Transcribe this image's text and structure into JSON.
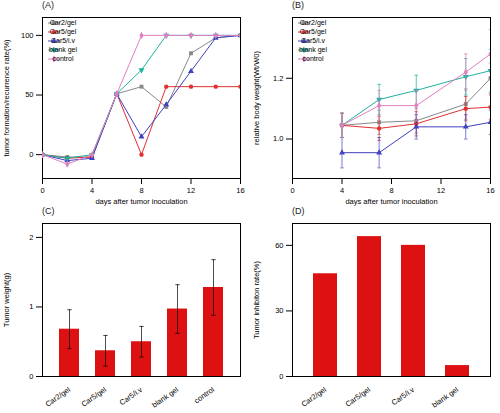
{
  "chart_data": [
    {
      "type": "line",
      "title": "(A)",
      "xlabel": "days after tumor inoculation",
      "ylabel": "tumor formation/recurrence rate(%)",
      "xlim": [
        0,
        16
      ],
      "ylim": [
        -20,
        115
      ],
      "xticks": [
        0,
        4,
        8,
        12,
        16
      ],
      "yticks": [
        0,
        50,
        100
      ],
      "grid": false,
      "legend": "upper left",
      "series": [
        {
          "name": "Car2/gel",
          "color": "#888888",
          "marker": "square",
          "x": [
            0,
            2,
            4,
            6,
            8,
            10,
            12,
            14,
            16
          ],
          "values": [
            0,
            -2,
            -2,
            51,
            57,
            40,
            85,
            98,
            100
          ]
        },
        {
          "name": "Car5/gel",
          "color": "#e03030",
          "marker": "circle",
          "x": [
            0,
            2,
            4,
            6,
            8,
            10,
            12,
            14,
            16
          ],
          "values": [
            0,
            -3,
            -2,
            51,
            0,
            57,
            57,
            57,
            57
          ]
        },
        {
          "name": "Car5/i.v",
          "color": "#4040c0",
          "marker": "triangle-up",
          "x": [
            0,
            2,
            4,
            6,
            8,
            10,
            12,
            14,
            16
          ],
          "values": [
            0,
            -5,
            -3,
            51,
            15,
            42,
            70,
            98,
            100
          ]
        },
        {
          "name": "blank gel",
          "color": "#20b0a0",
          "marker": "triangle-down",
          "x": [
            0,
            2,
            4,
            6,
            8,
            10,
            12,
            14,
            16
          ],
          "values": [
            0,
            -3,
            0,
            51,
            71,
            100,
            100,
            100,
            100
          ]
        },
        {
          "name": "control",
          "color": "#e080c0",
          "marker": "diamond",
          "x": [
            0,
            2,
            4,
            6,
            8,
            10,
            12,
            14,
            16
          ],
          "values": [
            0,
            -8,
            0,
            51,
            100,
            100,
            100,
            100,
            100
          ]
        }
      ]
    },
    {
      "type": "line",
      "title": "(B)",
      "xlabel": "days after tumor inoculation",
      "ylabel": "relative body weight(Wt/W0)",
      "xlim": [
        0,
        16
      ],
      "ylim": [
        0.87,
        1.4
      ],
      "xticks": [
        0,
        4,
        8,
        12,
        16
      ],
      "yticks": [
        {
          "value": 1.0,
          "label": "1.0"
        },
        1.2
      ],
      "grid": false,
      "legend": "upper left",
      "series": [
        {
          "name": "Car2/gel",
          "color": "#888888",
          "marker": "square",
          "x": [
            4,
            7,
            10,
            14,
            16
          ],
          "values": [
            1.045,
            1.055,
            1.06,
            1.115,
            1.2
          ],
          "errors": [
            0.04,
            0.04,
            0.04,
            0.05,
            0.05
          ]
        },
        {
          "name": "Car5/gel",
          "color": "#e03030",
          "marker": "circle",
          "x": [
            4,
            7,
            10,
            14,
            16
          ],
          "values": [
            1.045,
            1.035,
            1.05,
            1.1,
            1.105
          ],
          "errors": [
            0.04,
            0.04,
            0.04,
            0.04,
            0.04
          ]
        },
        {
          "name": "Car5/i.v",
          "color": "#4040c0",
          "marker": "triangle-up",
          "x": [
            4,
            7,
            10,
            14,
            16
          ],
          "values": [
            0.955,
            0.955,
            1.04,
            1.04,
            1.055
          ],
          "errors": [
            0.05,
            0.05,
            0.04,
            0.04,
            0.04
          ]
        },
        {
          "name": "blank gel",
          "color": "#20b0a0",
          "marker": "triangle-down",
          "x": [
            4,
            7,
            10,
            14,
            16
          ],
          "values": [
            1.045,
            1.13,
            1.16,
            1.205,
            1.225
          ],
          "errors": [
            0.04,
            0.05,
            0.05,
            0.06,
            0.07
          ]
        },
        {
          "name": "control",
          "color": "#e080c0",
          "marker": "diamond",
          "x": [
            4,
            7,
            10,
            14,
            16
          ],
          "values": [
            1.045,
            1.11,
            1.11,
            1.22,
            1.28
          ],
          "errors": [
            0.04,
            0.05,
            0.05,
            0.06,
            0.08
          ]
        }
      ]
    },
    {
      "type": "bar",
      "title": "(C)",
      "ylabel": "Tumor weight(g)",
      "ylim": [
        0,
        2.2
      ],
      "yticks": [
        0,
        1,
        2
      ],
      "grid": false,
      "categories": [
        "Car2/gel",
        "Car5/gel",
        "Car5/i.v",
        "blank gel",
        "control"
      ],
      "values": [
        0.68,
        0.37,
        0.5,
        0.97,
        1.28
      ],
      "errors": [
        0.28,
        0.22,
        0.22,
        0.35,
        0.4
      ],
      "color": "#dd1111"
    },
    {
      "type": "bar",
      "title": "(D)",
      "ylabel": "Tumor inhibiton rate(%)",
      "ylim": [
        0,
        70
      ],
      "yticks": [
        0,
        30,
        60
      ],
      "grid": false,
      "categories": [
        "Car2/gel",
        "Car5/gel",
        "Car5/i.v",
        "blank gel"
      ],
      "values": [
        47,
        64,
        60,
        5
      ],
      "color": "#dd1111"
    }
  ]
}
